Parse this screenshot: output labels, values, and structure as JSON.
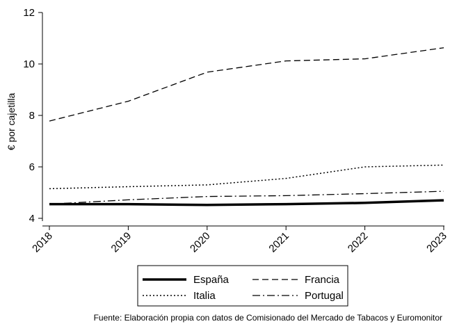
{
  "chart_data": {
    "type": "line",
    "title": "",
    "xlabel": "",
    "ylabel": "€ por cajetilla",
    "x": [
      "2018",
      "2019",
      "2020",
      "2021",
      "2022",
      "2023"
    ],
    "ylim": [
      4,
      12
    ],
    "yticks": [
      4,
      6,
      8,
      10,
      12
    ],
    "grid": false,
    "legend_position": "bottom",
    "series": [
      {
        "name": "España",
        "values": [
          4.55,
          4.55,
          4.52,
          4.55,
          4.6,
          4.7
        ],
        "color": "#000000",
        "style": "solid-thick"
      },
      {
        "name": "Francia",
        "values": [
          7.78,
          8.55,
          9.68,
          10.12,
          10.2,
          10.63
        ],
        "color": "#000000",
        "style": "dashed"
      },
      {
        "name": "Italia",
        "values": [
          5.15,
          5.23,
          5.3,
          5.55,
          6.0,
          6.07
        ],
        "color": "#000000",
        "style": "dotted"
      },
      {
        "name": "Portugal",
        "values": [
          4.55,
          4.72,
          4.85,
          4.88,
          4.96,
          5.05
        ],
        "color": "#000000",
        "style": "dash-dot"
      }
    ]
  },
  "source_note": "Fuente: Elaboración propia con datos de Comisionado del Mercado de Tabacos y Euromonitor"
}
